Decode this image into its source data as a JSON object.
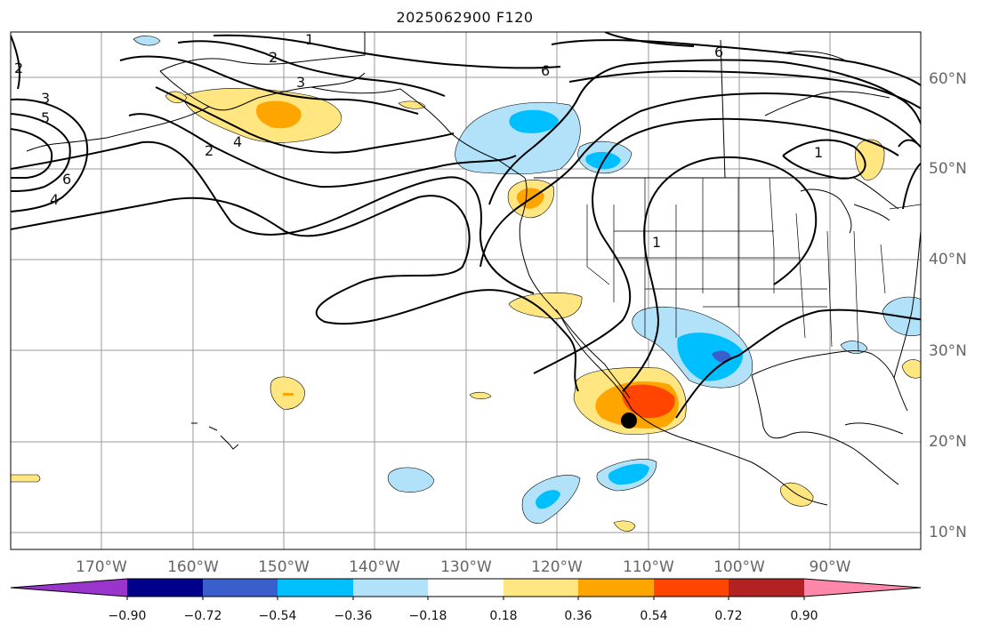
{
  "title": "2025062900 F120",
  "map": {
    "lon_labels": [
      "170°W",
      "160°W",
      "150°W",
      "140°W",
      "130°W",
      "120°W",
      "110°W",
      "100°W",
      "90°W"
    ],
    "lat_labels": [
      "60°N",
      "50°N",
      "40°N",
      "30°N",
      "20°N",
      "10°N"
    ],
    "contour_labels": [
      "1",
      "2",
      "2",
      "3",
      "3",
      "4",
      "4",
      "5",
      "6",
      "6",
      "6",
      "1",
      "1",
      "2"
    ],
    "colors": {
      "land_border": "#000000",
      "grid": "#9a9a9a",
      "contour": "#000000",
      "marker": "#000000"
    }
  },
  "colorbar": {
    "ticks": [
      "−0.90",
      "−0.72",
      "−0.54",
      "−0.36",
      "−0.18",
      "0.18",
      "0.36",
      "0.54",
      "0.72",
      "0.90"
    ],
    "colors": [
      "#9a35cc",
      "#00008b",
      "#3a5fcd",
      "#00bfff",
      "#b2e2fa",
      "#ffffff",
      "#ffe680",
      "#ffa500",
      "#ff4500",
      "#b22222",
      "#ff88aa"
    ]
  }
}
